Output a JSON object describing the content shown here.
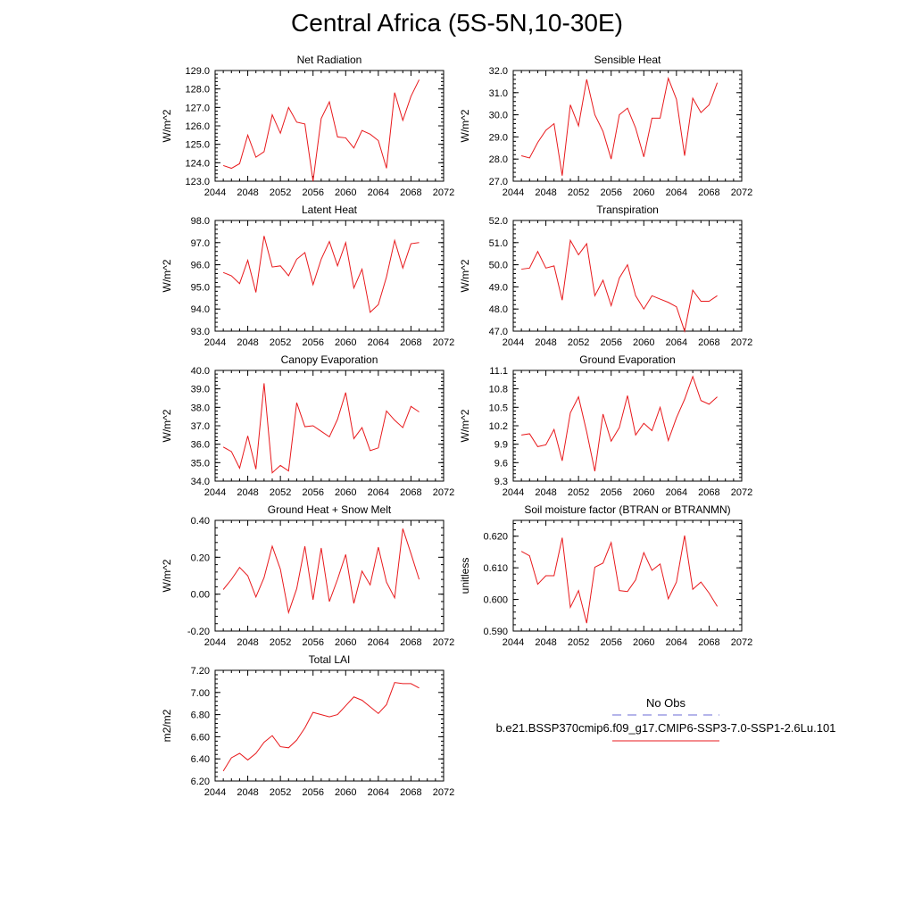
{
  "page": {
    "title": "Central Africa (5S-5N,10-30E)"
  },
  "legend": {
    "obs_label": "No Obs",
    "model_label": "b.e21.BSSP370cmip6.f09_g17.CMIP6-SSP3-7.0-SSP1-2.6Lu.101",
    "obs_color": "#6b6bd6",
    "model_color": "#e8191c"
  },
  "chart_data": [
    {
      "type": "line",
      "title": "Net Radiation",
      "ylabel": "W/m^2",
      "xlim": [
        2044,
        2072
      ],
      "ylim": [
        123.0,
        129.0
      ],
      "xticks": [
        "2044",
        "2048",
        "2052",
        "2056",
        "2060",
        "2064",
        "2068",
        "2072"
      ],
      "yticks": [
        "123.0",
        "124.0",
        "125.0",
        "126.0",
        "127.0",
        "128.0",
        "129.0"
      ],
      "x": [
        2045,
        2046,
        2047,
        2048,
        2049,
        2050,
        2051,
        2052,
        2053,
        2054,
        2055,
        2056,
        2057,
        2058,
        2059,
        2060,
        2061,
        2062,
        2063,
        2064,
        2065,
        2066,
        2067,
        2068,
        2069
      ],
      "series": [
        {
          "values": [
            123.85,
            123.7,
            123.95,
            125.5,
            124.3,
            124.6,
            126.6,
            125.6,
            127.0,
            126.2,
            126.1,
            123.0,
            126.4,
            127.3,
            125.4,
            125.35,
            124.8,
            125.75,
            125.55,
            125.2,
            123.7,
            127.8,
            126.3,
            127.6,
            128.5
          ]
        }
      ]
    },
    {
      "type": "line",
      "title": "Sensible Heat",
      "ylabel": "W/m^2",
      "xlim": [
        2044,
        2072
      ],
      "ylim": [
        27.0,
        32.0
      ],
      "xticks": [
        "2044",
        "2048",
        "2052",
        "2056",
        "2060",
        "2064",
        "2068",
        "2072"
      ],
      "yticks": [
        "27.0",
        "28.0",
        "29.0",
        "30.0",
        "31.0",
        "32.0"
      ],
      "x": [
        2045,
        2046,
        2047,
        2048,
        2049,
        2050,
        2051,
        2052,
        2053,
        2054,
        2055,
        2056,
        2057,
        2058,
        2059,
        2060,
        2061,
        2062,
        2063,
        2064,
        2065,
        2066,
        2067,
        2068,
        2069
      ],
      "series": [
        {
          "values": [
            28.15,
            28.05,
            28.75,
            29.3,
            29.6,
            27.25,
            30.45,
            29.5,
            31.6,
            30.0,
            29.25,
            28.0,
            30.0,
            30.3,
            29.4,
            28.1,
            29.85,
            29.85,
            31.65,
            30.7,
            28.15,
            30.75,
            30.1,
            30.45,
            31.45
          ]
        }
      ]
    },
    {
      "type": "line",
      "title": "Latent Heat",
      "ylabel": "W/m^2",
      "xlim": [
        2044,
        2072
      ],
      "ylim": [
        93.0,
        98.0
      ],
      "xticks": [
        "2044",
        "2048",
        "2052",
        "2056",
        "2060",
        "2064",
        "2068",
        "2072"
      ],
      "yticks": [
        "93.0",
        "94.0",
        "95.0",
        "96.0",
        "97.0",
        "98.0"
      ],
      "x": [
        2045,
        2046,
        2047,
        2048,
        2049,
        2050,
        2051,
        2052,
        2053,
        2054,
        2055,
        2056,
        2057,
        2058,
        2059,
        2060,
        2061,
        2062,
        2063,
        2064,
        2065,
        2066,
        2067,
        2068,
        2069
      ],
      "series": [
        {
          "values": [
            95.65,
            95.5,
            95.15,
            96.2,
            94.75,
            97.3,
            95.9,
            95.95,
            95.5,
            96.25,
            96.55,
            95.1,
            96.25,
            97.05,
            95.95,
            97.0,
            94.95,
            95.8,
            93.85,
            94.2,
            95.45,
            97.1,
            95.85,
            96.95,
            97.0
          ]
        }
      ]
    },
    {
      "type": "line",
      "title": "Transpiration",
      "ylabel": "W/m^2",
      "xlim": [
        2044,
        2072
      ],
      "ylim": [
        47.0,
        52.0
      ],
      "xticks": [
        "2044",
        "2048",
        "2052",
        "2056",
        "2060",
        "2064",
        "2068",
        "2072"
      ],
      "yticks": [
        "47.0",
        "48.0",
        "49.0",
        "50.0",
        "51.0",
        "52.0"
      ],
      "x": [
        2045,
        2046,
        2047,
        2048,
        2049,
        2050,
        2051,
        2052,
        2053,
        2054,
        2055,
        2056,
        2057,
        2058,
        2059,
        2060,
        2061,
        2062,
        2063,
        2064,
        2065,
        2066,
        2067,
        2068,
        2069
      ],
      "series": [
        {
          "values": [
            49.8,
            49.85,
            50.6,
            49.85,
            49.95,
            48.4,
            51.1,
            50.45,
            50.95,
            48.6,
            49.3,
            48.15,
            49.4,
            50.0,
            48.6,
            48.0,
            48.6,
            48.45,
            48.3,
            48.1,
            47.0,
            48.85,
            48.35,
            48.35,
            48.6
          ]
        }
      ]
    },
    {
      "type": "line",
      "title": "Canopy Evaporation",
      "ylabel": "W/m^2",
      "xlim": [
        2044,
        2072
      ],
      "ylim": [
        34.0,
        40.0
      ],
      "xticks": [
        "2044",
        "2048",
        "2052",
        "2056",
        "2060",
        "2064",
        "2068",
        "2072"
      ],
      "yticks": [
        "34.0",
        "35.0",
        "36.0",
        "37.0",
        "38.0",
        "39.0",
        "40.0"
      ],
      "x": [
        2045,
        2046,
        2047,
        2048,
        2049,
        2050,
        2051,
        2052,
        2053,
        2054,
        2055,
        2056,
        2057,
        2058,
        2059,
        2060,
        2061,
        2062,
        2063,
        2064,
        2065,
        2066,
        2067,
        2068,
        2069
      ],
      "series": [
        {
          "values": [
            35.85,
            35.6,
            34.7,
            36.45,
            34.65,
            39.3,
            34.45,
            34.85,
            34.55,
            38.25,
            36.95,
            37.0,
            36.7,
            36.4,
            37.35,
            38.8,
            36.3,
            36.9,
            35.65,
            35.8,
            37.8,
            37.3,
            36.9,
            38.05,
            37.75
          ]
        }
      ]
    },
    {
      "type": "line",
      "title": "Ground Evaporation",
      "ylabel": "W/m^2",
      "xlim": [
        2044,
        2072
      ],
      "ylim": [
        9.3,
        11.1
      ],
      "xticks": [
        "2044",
        "2048",
        "2052",
        "2056",
        "2060",
        "2064",
        "2068",
        "2072"
      ],
      "yticks": [
        "9.3",
        "9.6",
        "9.9",
        "10.2",
        "10.5",
        "10.8",
        "11.1"
      ],
      "x": [
        2045,
        2046,
        2047,
        2048,
        2049,
        2050,
        2051,
        2052,
        2053,
        2054,
        2055,
        2056,
        2057,
        2058,
        2059,
        2060,
        2061,
        2062,
        2063,
        2064,
        2065,
        2066,
        2067,
        2068,
        2069
      ],
      "series": [
        {
          "values": [
            10.05,
            10.07,
            9.86,
            9.89,
            10.14,
            9.63,
            10.41,
            10.67,
            10.1,
            9.46,
            10.39,
            9.95,
            10.17,
            10.69,
            10.05,
            10.24,
            10.12,
            10.5,
            9.96,
            10.33,
            10.63,
            11.0,
            10.61,
            10.55,
            10.67
          ]
        }
      ]
    },
    {
      "type": "line",
      "title": "Ground Heat + Snow Melt",
      "ylabel": "W/m^2",
      "xlim": [
        2044,
        2072
      ],
      "ylim": [
        -0.2,
        0.4
      ],
      "xticks": [
        "2044",
        "2048",
        "2052",
        "2056",
        "2060",
        "2064",
        "2068",
        "2072"
      ],
      "yticks": [
        "-0.20",
        "0.00",
        "0.20",
        "0.40"
      ],
      "x": [
        2045,
        2046,
        2047,
        2048,
        2049,
        2050,
        2051,
        2052,
        2053,
        2054,
        2055,
        2056,
        2057,
        2058,
        2059,
        2060,
        2061,
        2062,
        2063,
        2064,
        2065,
        2066,
        2067,
        2068,
        2069
      ],
      "series": [
        {
          "values": [
            0.025,
            0.08,
            0.145,
            0.1,
            -0.015,
            0.09,
            0.26,
            0.135,
            -0.1,
            0.03,
            0.26,
            -0.03,
            0.25,
            -0.04,
            0.08,
            0.215,
            -0.05,
            0.125,
            0.05,
            0.255,
            0.065,
            -0.02,
            0.355,
            0.22,
            0.08
          ]
        }
      ]
    },
    {
      "type": "line",
      "title": "Soil moisture factor (BTRAN or BTRANMN)",
      "ylabel": "unitless",
      "xlim": [
        2044,
        2072
      ],
      "ylim": [
        0.59,
        0.625
      ],
      "xticks": [
        "2044",
        "2048",
        "2052",
        "2056",
        "2060",
        "2064",
        "2068",
        "2072"
      ],
      "yticks": [
        "0.590",
        "0.600",
        "0.610",
        "0.620"
      ],
      "x": [
        2045,
        2046,
        2047,
        2048,
        2049,
        2050,
        2051,
        2052,
        2053,
        2054,
        2055,
        2056,
        2057,
        2058,
        2059,
        2060,
        2061,
        2062,
        2063,
        2064,
        2065,
        2066,
        2067,
        2068,
        2069
      ],
      "series": [
        {
          "values": [
            0.6152,
            0.6138,
            0.6048,
            0.6075,
            0.6075,
            0.6195,
            0.5975,
            0.6028,
            0.5925,
            0.6102,
            0.6115,
            0.618,
            0.6028,
            0.6025,
            0.6062,
            0.6148,
            0.6092,
            0.6112,
            0.6002,
            0.6055,
            0.6202,
            0.6032,
            0.6055,
            0.602,
            0.5978
          ]
        }
      ]
    },
    {
      "type": "line",
      "title": "Total LAI",
      "ylabel": "m2/m2",
      "xlim": [
        2044,
        2072
      ],
      "ylim": [
        6.2,
        7.2
      ],
      "xticks": [
        "2044",
        "2048",
        "2052",
        "2056",
        "2060",
        "2064",
        "2068",
        "2072"
      ],
      "yticks": [
        "6.20",
        "6.40",
        "6.60",
        "6.80",
        "7.00",
        "7.20"
      ],
      "x": [
        2045,
        2046,
        2047,
        2048,
        2049,
        2050,
        2051,
        2052,
        2053,
        2054,
        2055,
        2056,
        2057,
        2058,
        2059,
        2060,
        2061,
        2062,
        2063,
        2064,
        2065,
        2066,
        2067,
        2068,
        2069
      ],
      "series": [
        {
          "values": [
            6.29,
            6.41,
            6.45,
            6.39,
            6.45,
            6.55,
            6.61,
            6.51,
            6.5,
            6.57,
            6.68,
            6.82,
            6.8,
            6.78,
            6.8,
            6.88,
            6.96,
            6.93,
            6.87,
            6.81,
            6.89,
            7.09,
            7.08,
            7.08,
            7.04
          ]
        }
      ]
    }
  ]
}
